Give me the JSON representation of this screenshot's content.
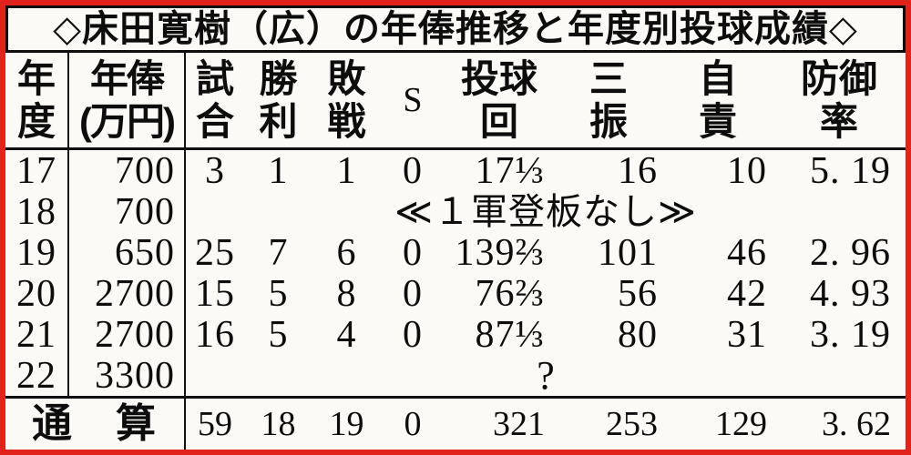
{
  "title": "◇床田寛樹（広）の年俸推移と年度別投球成績◇",
  "colors": {
    "frame_red": "#e2231b",
    "paper": "#fbfaf6",
    "ink": "#0d0d0d"
  },
  "table": {
    "headers": {
      "year": [
        "年",
        "度"
      ],
      "salary": [
        "年俸",
        "(万円)"
      ],
      "games": [
        "試",
        "合"
      ],
      "wins": [
        "勝",
        "利"
      ],
      "losses": [
        "敗",
        "戦"
      ],
      "saves": "S",
      "innings": [
        "投球",
        "回"
      ],
      "strikeouts": [
        "三",
        "振"
      ],
      "earned_runs": [
        "自",
        "責"
      ],
      "era": [
        "防御",
        "率"
      ]
    },
    "rows": [
      {
        "year": "17",
        "salary": "700",
        "games": "3",
        "wins": "1",
        "losses": "1",
        "saves": "0",
        "innings": "17⅓",
        "strikeouts": "16",
        "earned_runs": "10",
        "era": "5. 19"
      },
      {
        "year": "18",
        "salary": "700",
        "note": "≪１軍登板なし≫"
      },
      {
        "year": "19",
        "salary": "650",
        "games": "25",
        "wins": "7",
        "losses": "6",
        "saves": "0",
        "innings": "139⅔",
        "strikeouts": "101",
        "earned_runs": "46",
        "era": "2. 96"
      },
      {
        "year": "20",
        "salary": "2700",
        "games": "15",
        "wins": "5",
        "losses": "8",
        "saves": "0",
        "innings": "76⅔",
        "strikeouts": "56",
        "earned_runs": "42",
        "era": "4. 93"
      },
      {
        "year": "21",
        "salary": "2700",
        "games": "16",
        "wins": "5",
        "losses": "4",
        "saves": "0",
        "innings": "87⅓",
        "strikeouts": "80",
        "earned_runs": "31",
        "era": "3. 19"
      },
      {
        "year": "22",
        "salary": "3300",
        "note": "?"
      }
    ],
    "total": {
      "label": "通　算",
      "games": "59",
      "wins": "18",
      "losses": "19",
      "saves": "0",
      "innings": "321",
      "strikeouts": "253",
      "earned_runs": "129",
      "era": "3. 62"
    }
  },
  "chart_data": {
    "type": "table",
    "title": "◇床田寛樹（広）の年俸推移と年度別投球成績◇",
    "columns": [
      "年度",
      "年俸(万円)",
      "試合",
      "勝利",
      "敗戦",
      "S",
      "投球回",
      "三振",
      "自責",
      "防御率"
    ],
    "rows": [
      [
        "17",
        "700",
        "3",
        "1",
        "1",
        "0",
        "17⅓",
        "16",
        "10",
        "5.19"
      ],
      [
        "18",
        "700",
        "≪１軍登板なし≫",
        null,
        null,
        null,
        null,
        null,
        null,
        null
      ],
      [
        "19",
        "650",
        "25",
        "7",
        "6",
        "0",
        "139⅔",
        "101",
        "46",
        "2.96"
      ],
      [
        "20",
        "2700",
        "15",
        "5",
        "8",
        "0",
        "76⅔",
        "56",
        "42",
        "4.93"
      ],
      [
        "21",
        "2700",
        "16",
        "5",
        "4",
        "0",
        "87⅓",
        "80",
        "31",
        "3.19"
      ],
      [
        "22",
        "3300",
        "?",
        null,
        null,
        null,
        null,
        null,
        null,
        null
      ],
      [
        "通算",
        null,
        "59",
        "18",
        "19",
        "0",
        "321",
        "253",
        "129",
        "3.62"
      ]
    ]
  }
}
